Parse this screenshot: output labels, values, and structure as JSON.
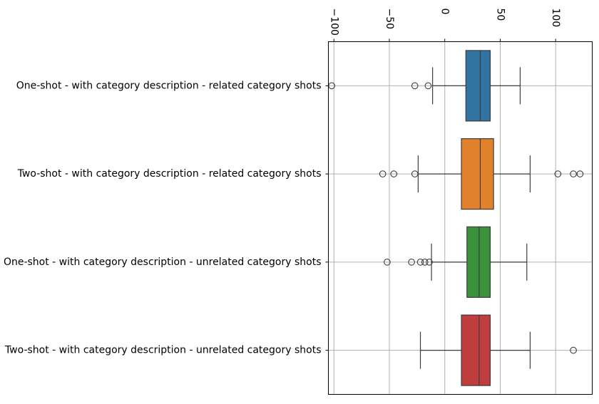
{
  "chart_data": {
    "type": "boxplot",
    "orientation": "horizontal",
    "x_tick_labels_rotated": true,
    "grid": true,
    "legend": "none",
    "xlim": [
      -105,
      133
    ],
    "x_ticks": [
      -100,
      -50,
      0,
      50,
      100
    ],
    "x_tick_labels": [
      "−100",
      "−50",
      "0",
      "50",
      "100"
    ],
    "categories": [
      "One-shot - with category description - related category shots",
      "Two-shot - with category description - related category shots",
      "One-shot - with category description - unrelated category shots",
      "Two-shot - with category description - unrelated category shots"
    ],
    "colors": [
      "#3274a1",
      "#e1812c",
      "#3a923a",
      "#c03d3e"
    ],
    "boxes": [
      {
        "whisker_low": -11,
        "q1": 19,
        "median": 32,
        "q3": 41,
        "whisker_high": 68,
        "outliers": [
          -102,
          -27,
          -15
        ]
      },
      {
        "whisker_low": -24,
        "q1": 15,
        "median": 32,
        "q3": 44,
        "whisker_high": 77,
        "outliers": [
          -56,
          -46,
          -27,
          102,
          116,
          122
        ]
      },
      {
        "whisker_low": -12,
        "q1": 20,
        "median": 31,
        "q3": 41,
        "whisker_high": 74,
        "outliers": [
          -52,
          -30,
          -22,
          -18,
          -14
        ]
      },
      {
        "whisker_low": -22,
        "q1": 15,
        "median": 31,
        "q3": 41,
        "whisker_high": 77,
        "outliers": [
          116
        ]
      }
    ]
  }
}
